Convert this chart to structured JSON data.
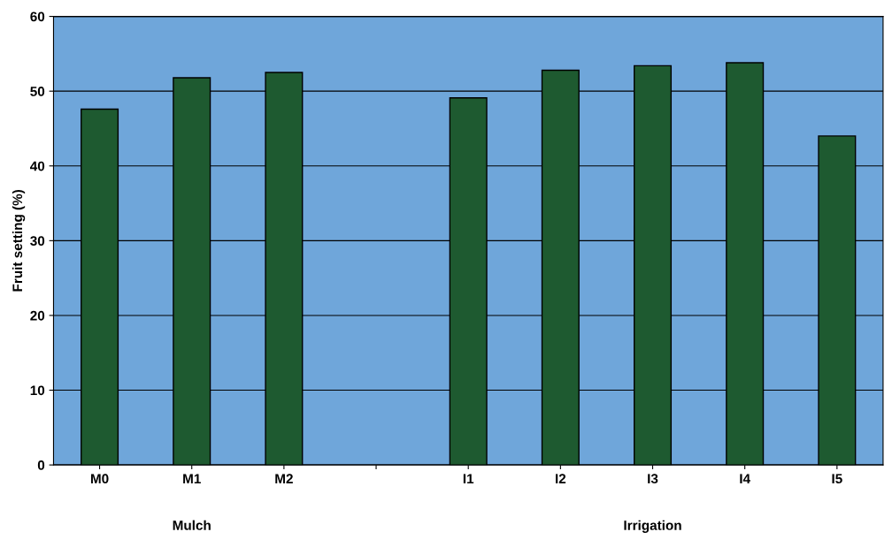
{
  "chart_data": {
    "type": "bar",
    "ylabel": "Fruit setting (%)",
    "categories": [
      "M0",
      "M1",
      "M2",
      null,
      "I1",
      "I2",
      "I3",
      "I4",
      "I5"
    ],
    "values": [
      47.6,
      51.8,
      52.5,
      null,
      49.1,
      52.8,
      53.4,
      53.8,
      44.0
    ],
    "color": "#1e5a30",
    "ylim": [
      0,
      60
    ],
    "yticks": [
      0,
      10,
      20,
      30,
      40,
      50,
      60
    ],
    "grid": "y",
    "annotations": [
      "Mulch",
      "Irrigation"
    ]
  }
}
